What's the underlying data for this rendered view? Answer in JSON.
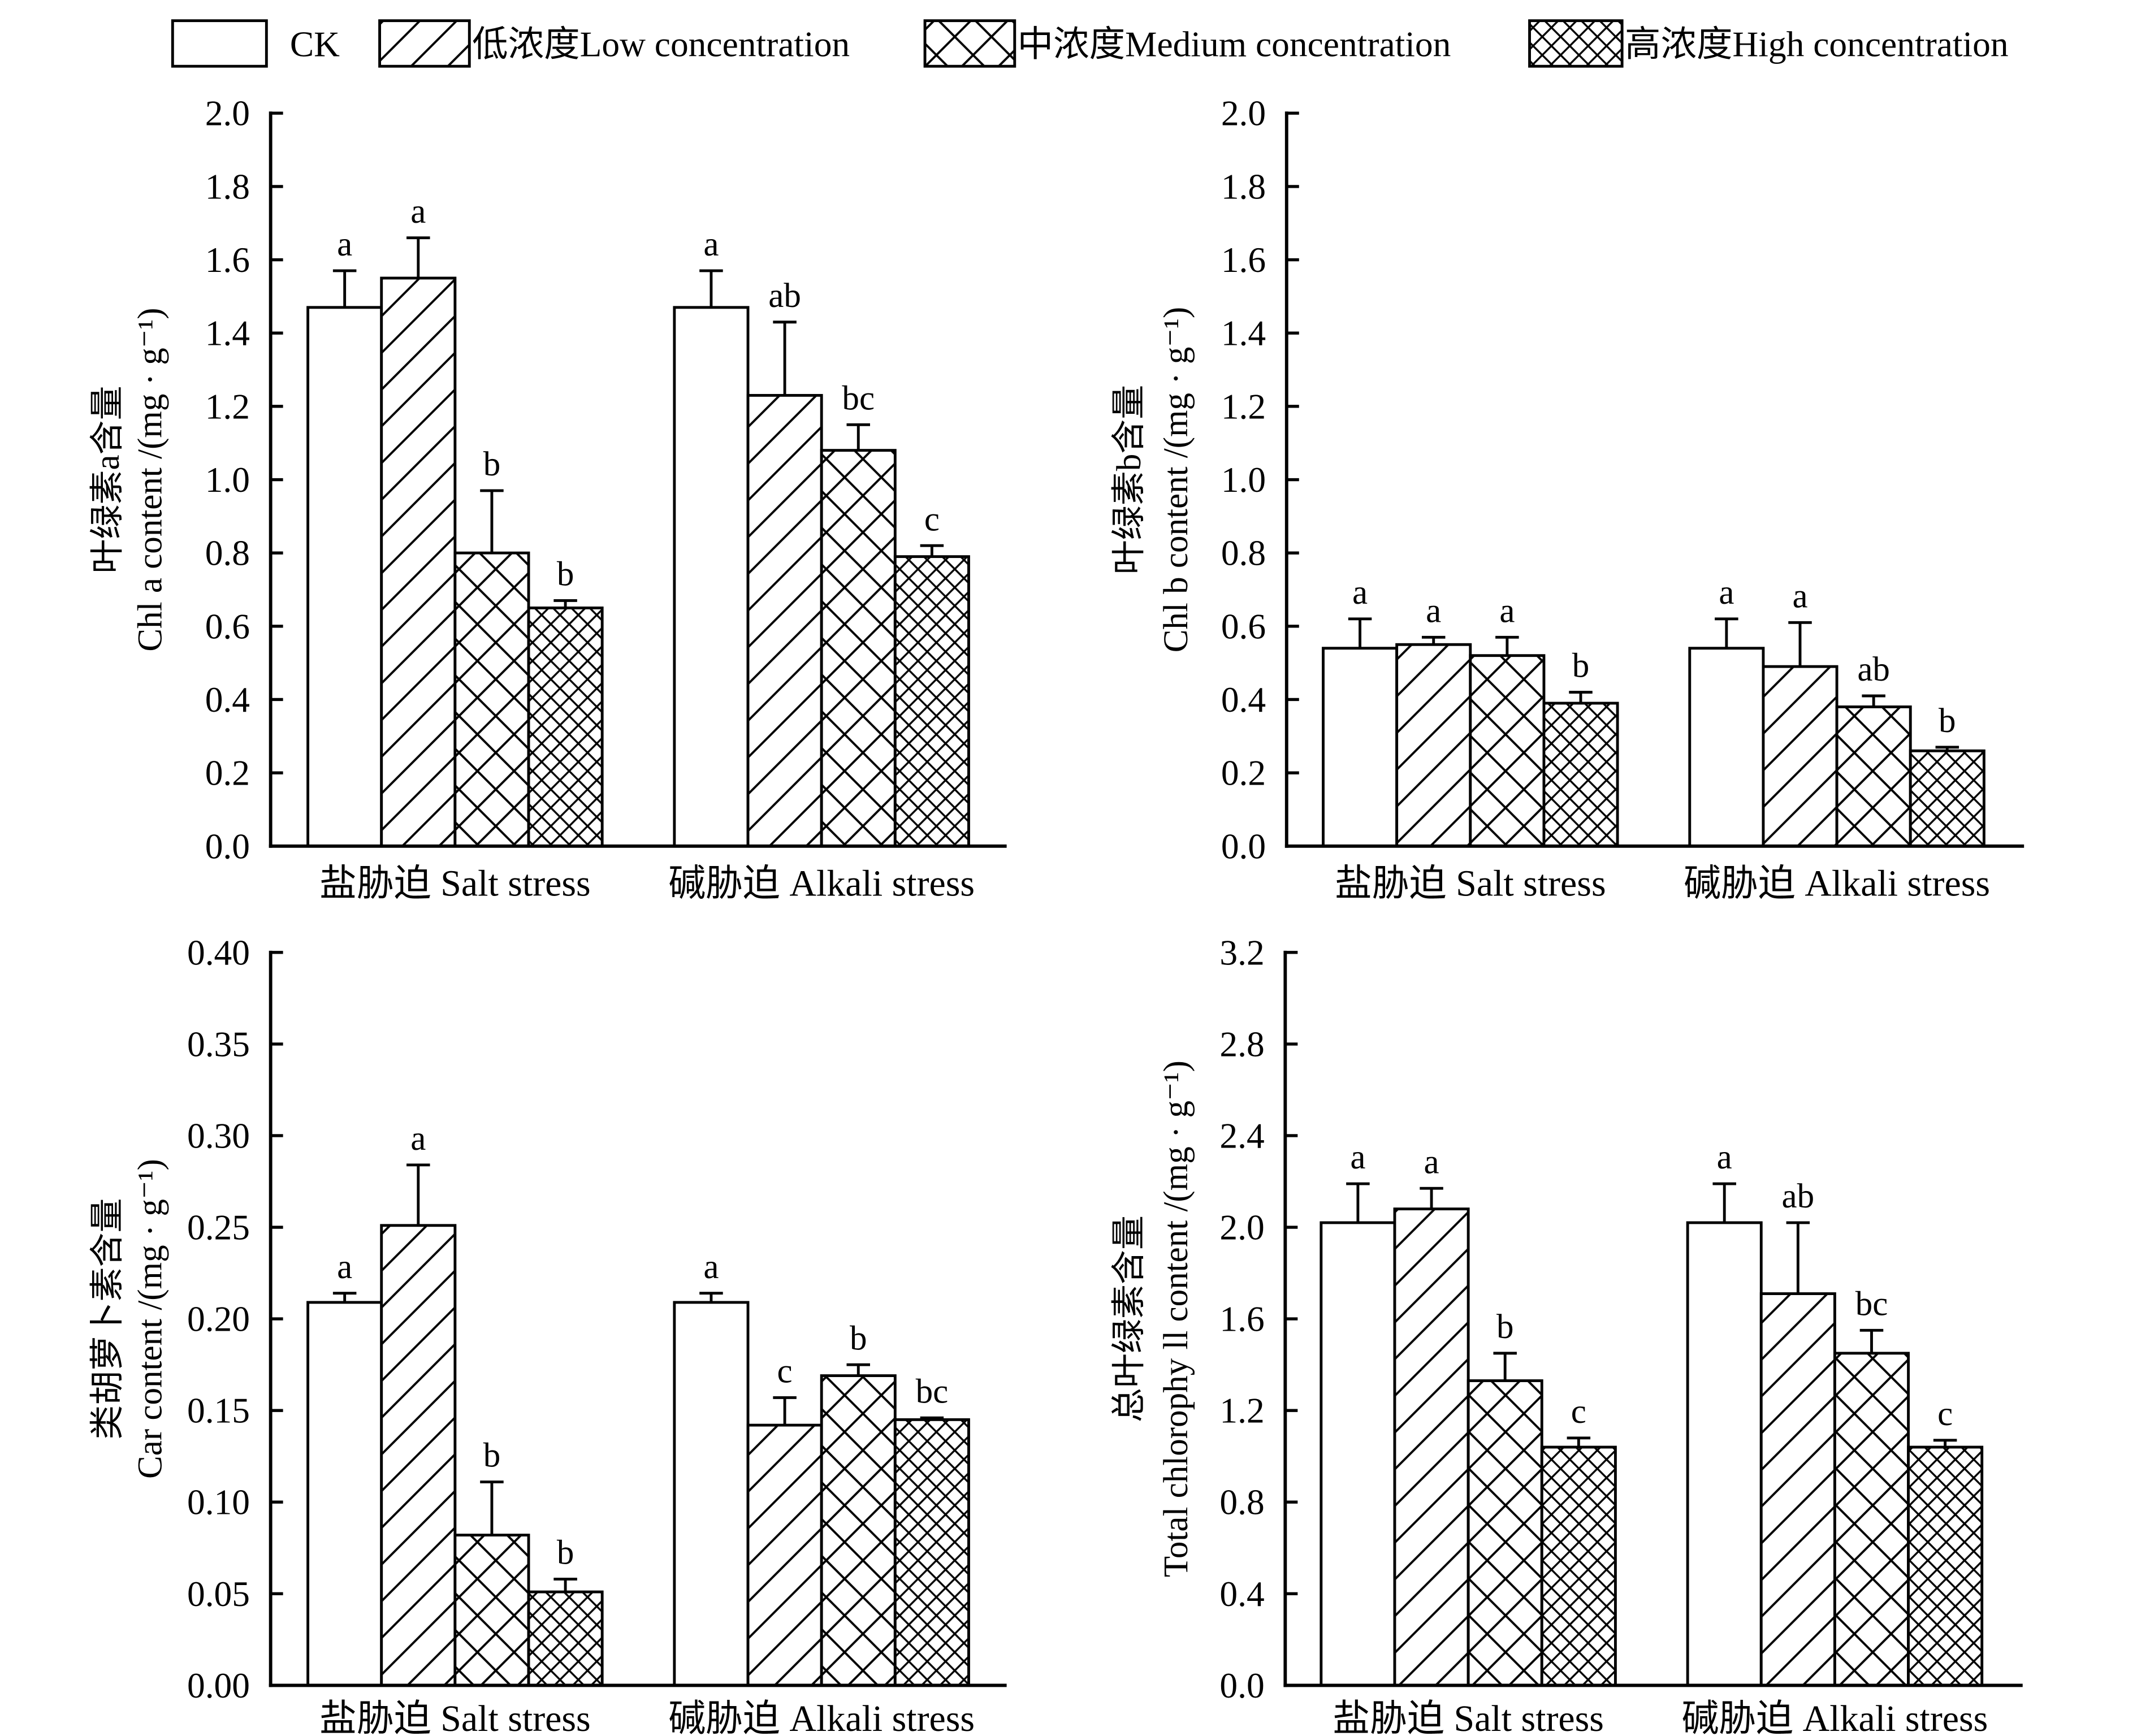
{
  "figure": {
    "legend_placement": "top",
    "error_bar_style": "upper",
    "grid": false
  },
  "colors": {
    "ink": "#000000",
    "background": "#ffffff"
  },
  "legend": [
    {
      "label": "CK",
      "hatch": "none"
    },
    {
      "label": "低浓度Low concentration",
      "hatch": "diagonal"
    },
    {
      "label": "中浓度Medium concentration",
      "hatch": "cross"
    },
    {
      "label": "高浓度High concentration",
      "hatch": "dense-cross"
    }
  ],
  "chart_data": [
    {
      "type": "bar",
      "ylabel_lines": [
        "叶绿素a含量",
        "Chl a content /(mg · g⁻¹)"
      ],
      "categories": [
        "盐胁迫 Salt stress",
        "碱胁迫 Alkali stress"
      ],
      "ylim": [
        0,
        2.0
      ],
      "yticks": [
        "0.0",
        "0.2",
        "0.4",
        "0.6",
        "0.8",
        "1.0",
        "1.2",
        "1.4",
        "1.6",
        "1.8",
        "2.0"
      ],
      "grid": false,
      "series": [
        {
          "values": [
            1.47,
            1.47
          ],
          "errors": [
            0.1,
            0.1
          ],
          "letters": [
            "a",
            "a"
          ]
        },
        {
          "values": [
            1.55,
            1.23
          ],
          "errors": [
            0.11,
            0.2
          ],
          "letters": [
            "a",
            "ab"
          ]
        },
        {
          "values": [
            0.8,
            1.08
          ],
          "errors": [
            0.17,
            0.07
          ],
          "letters": [
            "b",
            "bc"
          ]
        },
        {
          "values": [
            0.65,
            0.79
          ],
          "errors": [
            0.02,
            0.03
          ],
          "letters": [
            "b",
            "c"
          ]
        }
      ]
    },
    {
      "type": "bar",
      "ylabel_lines": [
        "叶绿素b含量",
        "Chl b content /(mg · g⁻¹)"
      ],
      "categories": [
        "盐胁迫 Salt stress",
        "碱胁迫 Alkali stress"
      ],
      "ylim": [
        0,
        2.0
      ],
      "yticks": [
        "0.0",
        "0.2",
        "0.4",
        "0.6",
        "0.8",
        "1.0",
        "1.2",
        "1.4",
        "1.6",
        "1.8",
        "2.0"
      ],
      "grid": false,
      "series": [
        {
          "values": [
            0.54,
            0.54
          ],
          "errors": [
            0.08,
            0.08
          ],
          "letters": [
            "a",
            "a"
          ]
        },
        {
          "values": [
            0.55,
            0.49
          ],
          "errors": [
            0.02,
            0.12
          ],
          "letters": [
            "a",
            "a"
          ]
        },
        {
          "values": [
            0.52,
            0.38
          ],
          "errors": [
            0.05,
            0.03
          ],
          "letters": [
            "a",
            "ab"
          ]
        },
        {
          "values": [
            0.39,
            0.26
          ],
          "errors": [
            0.03,
            0.01
          ],
          "letters": [
            "b",
            "b"
          ]
        }
      ]
    },
    {
      "type": "bar",
      "ylabel_lines": [
        "类胡萝卜素含量",
        "Car content /(mg · g⁻¹)"
      ],
      "categories": [
        "盐胁迫 Salt stress",
        "碱胁迫 Alkali stress"
      ],
      "ylim": [
        0,
        0.4
      ],
      "yticks": [
        "0.00",
        "0.05",
        "0.10",
        "0.15",
        "0.20",
        "0.25",
        "0.30",
        "0.35",
        "0.40"
      ],
      "grid": false,
      "series": [
        {
          "values": [
            0.209,
            0.209
          ],
          "errors": [
            0.005,
            0.005
          ],
          "letters": [
            "a",
            "a"
          ]
        },
        {
          "values": [
            0.251,
            0.142
          ],
          "errors": [
            0.033,
            0.015
          ],
          "letters": [
            "a",
            "c"
          ]
        },
        {
          "values": [
            0.082,
            0.169
          ],
          "errors": [
            0.029,
            0.006
          ],
          "letters": [
            "b",
            "b"
          ]
        },
        {
          "values": [
            0.051,
            0.145
          ],
          "errors": [
            0.007,
            0.001
          ],
          "letters": [
            "b",
            "bc"
          ]
        }
      ]
    },
    {
      "type": "bar",
      "ylabel_lines": [
        "总叶绿素含量",
        "Total chlorophy ll content /(mg · g⁻¹)"
      ],
      "categories": [
        "盐胁迫 Salt stress",
        "碱胁迫 Alkali stress"
      ],
      "ylim": [
        0,
        3.2
      ],
      "yticks": [
        "0.0",
        "0.4",
        "0.8",
        "1.2",
        "1.6",
        "2.0",
        "2.4",
        "2.8",
        "3.2"
      ],
      "grid": false,
      "series": [
        {
          "values": [
            2.02,
            2.02
          ],
          "errors": [
            0.17,
            0.17
          ],
          "letters": [
            "a",
            "a"
          ]
        },
        {
          "values": [
            2.08,
            1.71
          ],
          "errors": [
            0.09,
            0.31
          ],
          "letters": [
            "a",
            "ab"
          ]
        },
        {
          "values": [
            1.33,
            1.45
          ],
          "errors": [
            0.12,
            0.1
          ],
          "letters": [
            "b",
            "bc"
          ]
        },
        {
          "values": [
            1.04,
            1.04
          ],
          "errors": [
            0.04,
            0.03
          ],
          "letters": [
            "c",
            "c"
          ]
        }
      ]
    }
  ]
}
